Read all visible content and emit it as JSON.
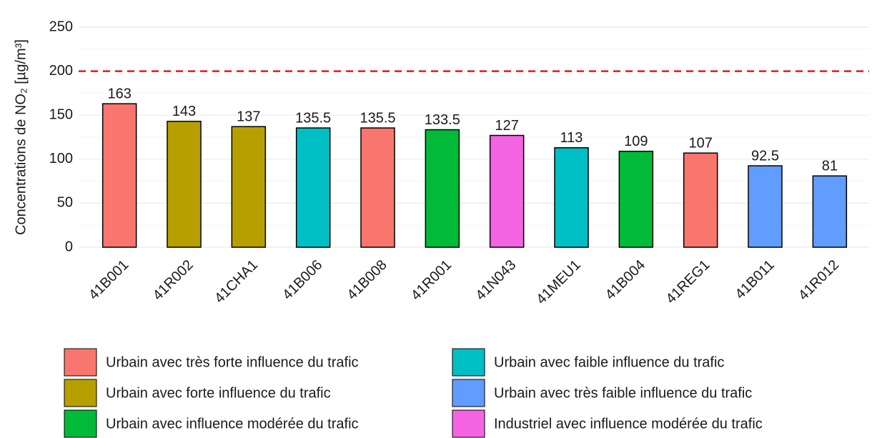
{
  "chart_data": {
    "type": "bar",
    "y_label": "Concentrations de NO₂ [µg/m³]",
    "categories": [
      "41B001",
      "41R002",
      "41CHA1",
      "41B006",
      "41B008",
      "41R001",
      "41N043",
      "41MEU1",
      "41B004",
      "41REG1",
      "41B011",
      "41R012"
    ],
    "values": [
      163,
      143,
      137,
      135.5,
      135.5,
      133.5,
      127,
      113,
      109,
      107,
      92.5,
      81
    ],
    "colors": [
      "#F8766D",
      "#B79F00",
      "#B79F00",
      "#00BFC4",
      "#F8766D",
      "#00BA38",
      "#F564E3",
      "#00BFC4",
      "#00BA38",
      "#F8766D",
      "#619CFF",
      "#619CFF"
    ],
    "category_label_colors": [
      "#1a1a1a",
      "#1a1a1a",
      "#ff0000",
      "#1a1a1a",
      "#1a1a1a",
      "#1a1a1a",
      "#1a1a1a",
      "#1a1a1a",
      "#1a1a1a",
      "#ff0000",
      "#1a1a1a",
      "#1a1a1a"
    ],
    "ylim": [
      0,
      250
    ],
    "yticks": [
      0,
      50,
      100,
      150,
      200,
      250
    ],
    "grid": true,
    "minor_grid": true,
    "reference_line": {
      "value": 200,
      "color": "#e41a1c",
      "style": "dashed"
    },
    "legend": [
      {
        "name": "Urbain avec très forte influence du trafic",
        "color": "#F8766D"
      },
      {
        "name": "Urbain avec forte influence du trafic",
        "color": "#B79F00"
      },
      {
        "name": "Urbain avec influence modérée du trafic",
        "color": "#00BA38"
      },
      {
        "name": "Urbain avec faible influence du trafic",
        "color": "#00BFC4"
      },
      {
        "name": "Urbain avec très faible influence du trafic",
        "color": "#619CFF"
      },
      {
        "name": "Industriel avec influence modérée du trafic",
        "color": "#F564E3"
      }
    ],
    "legend_position": "bottom"
  }
}
